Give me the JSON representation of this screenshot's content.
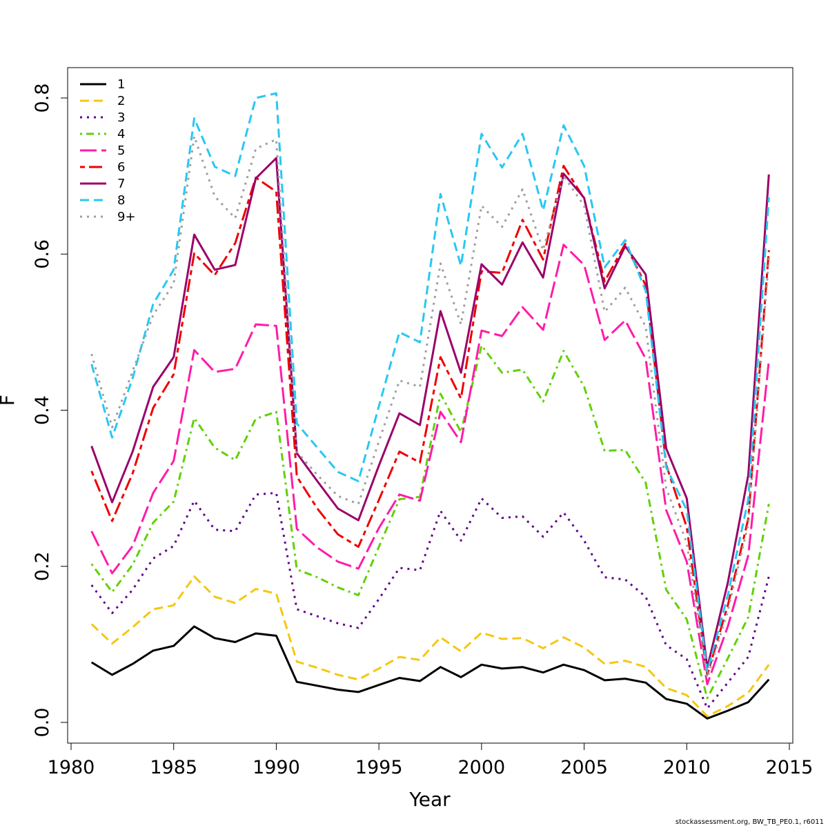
{
  "footer": {
    "source": "stockassessment.org, BW_TB_PE0.1, r6011"
  },
  "chart_data": {
    "type": "line",
    "xlabel": "Year",
    "ylabel": "F",
    "xlim": [
      1980,
      2015
    ],
    "ylim": [
      0,
      0.8
    ],
    "x_ticks": [
      1980,
      1985,
      1990,
      1995,
      2000,
      2005,
      2010,
      2015
    ],
    "y_ticks": [
      0.0,
      0.2,
      0.4,
      0.6,
      0.8
    ],
    "x_tick_labels": [
      "1980",
      "1985",
      "1990",
      "1995",
      "2000",
      "2005",
      "2010",
      "2015"
    ],
    "y_tick_labels": [
      "0.0",
      "0.2",
      "0.4",
      "0.6",
      "0.8"
    ],
    "legend_position": "top-left",
    "grid": false,
    "x": [
      1981,
      1982,
      1983,
      1984,
      1985,
      1986,
      1987,
      1988,
      1989,
      1990,
      1991,
      1992,
      1993,
      1994,
      1995,
      1996,
      1997,
      1998,
      1999,
      2000,
      2001,
      2002,
      2003,
      2004,
      2005,
      2006,
      2007,
      2008,
      2009,
      2010,
      2011,
      2012,
      2013,
      2014
    ],
    "series": [
      {
        "name": "1",
        "color": "#000000",
        "dash": "solid",
        "values": [
          0.077,
          0.061,
          0.075,
          0.092,
          0.098,
          0.123,
          0.108,
          0.103,
          0.114,
          0.111,
          0.052,
          0.047,
          0.042,
          0.039,
          0.048,
          0.057,
          0.053,
          0.071,
          0.058,
          0.074,
          0.069,
          0.071,
          0.064,
          0.074,
          0.067,
          0.054,
          0.056,
          0.051,
          0.03,
          0.024,
          0.005,
          0.015,
          0.026,
          0.055
        ]
      },
      {
        "name": "2",
        "color": "#f5c710",
        "dash": "dashed",
        "values": [
          0.126,
          0.101,
          0.122,
          0.145,
          0.15,
          0.187,
          0.161,
          0.153,
          0.171,
          0.165,
          0.078,
          0.07,
          0.061,
          0.055,
          0.069,
          0.084,
          0.08,
          0.109,
          0.091,
          0.115,
          0.107,
          0.108,
          0.095,
          0.109,
          0.096,
          0.075,
          0.079,
          0.071,
          0.044,
          0.035,
          0.008,
          0.021,
          0.038,
          0.074
        ]
      },
      {
        "name": "3",
        "color": "#61008a",
        "dash": "dotted",
        "values": [
          0.176,
          0.14,
          0.17,
          0.21,
          0.226,
          0.284,
          0.247,
          0.245,
          0.292,
          0.294,
          0.145,
          0.136,
          0.127,
          0.121,
          0.158,
          0.198,
          0.195,
          0.271,
          0.233,
          0.287,
          0.262,
          0.264,
          0.238,
          0.269,
          0.233,
          0.186,
          0.183,
          0.161,
          0.099,
          0.081,
          0.018,
          0.051,
          0.084,
          0.187
        ]
      },
      {
        "name": "4",
        "color": "#61d004",
        "dash": "dotdash",
        "values": [
          0.203,
          0.167,
          0.202,
          0.256,
          0.283,
          0.39,
          0.352,
          0.336,
          0.389,
          0.398,
          0.196,
          0.186,
          0.173,
          0.163,
          0.225,
          0.286,
          0.289,
          0.421,
          0.372,
          0.483,
          0.448,
          0.452,
          0.411,
          0.476,
          0.43,
          0.348,
          0.349,
          0.307,
          0.17,
          0.132,
          0.031,
          0.082,
          0.135,
          0.28
        ]
      },
      {
        "name": "5",
        "color": "#ff1ba8",
        "dash": "longdash",
        "values": [
          0.245,
          0.191,
          0.226,
          0.294,
          0.335,
          0.477,
          0.449,
          0.453,
          0.51,
          0.508,
          0.248,
          0.224,
          0.206,
          0.197,
          0.249,
          0.292,
          0.284,
          0.398,
          0.359,
          0.502,
          0.495,
          0.532,
          0.503,
          0.612,
          0.586,
          0.49,
          0.515,
          0.466,
          0.272,
          0.206,
          0.049,
          0.123,
          0.214,
          0.463
        ]
      },
      {
        "name": "6",
        "color": "#ee0000",
        "dash": "twodash",
        "values": [
          0.322,
          0.258,
          0.319,
          0.403,
          0.446,
          0.601,
          0.573,
          0.614,
          0.698,
          0.68,
          0.315,
          0.274,
          0.241,
          0.225,
          0.285,
          0.347,
          0.333,
          0.468,
          0.415,
          0.578,
          0.576,
          0.644,
          0.593,
          0.713,
          0.671,
          0.565,
          0.613,
          0.56,
          0.33,
          0.25,
          0.061,
          0.15,
          0.261,
          0.605
        ]
      },
      {
        "name": "7",
        "color": "#9a0069",
        "dash": "solid",
        "values": [
          0.354,
          0.282,
          0.347,
          0.43,
          0.468,
          0.625,
          0.58,
          0.586,
          0.697,
          0.723,
          0.345,
          0.309,
          0.274,
          0.259,
          0.329,
          0.396,
          0.381,
          0.527,
          0.448,
          0.587,
          0.561,
          0.615,
          0.57,
          0.703,
          0.672,
          0.556,
          0.61,
          0.574,
          0.351,
          0.287,
          0.07,
          0.179,
          0.317,
          0.702
        ]
      },
      {
        "name": "8",
        "color": "#28c7f2",
        "dash": "dashed",
        "values": [
          0.459,
          0.365,
          0.441,
          0.536,
          0.58,
          0.774,
          0.712,
          0.7,
          0.8,
          0.806,
          0.383,
          0.352,
          0.321,
          0.309,
          0.405,
          0.5,
          0.487,
          0.677,
          0.585,
          0.754,
          0.711,
          0.754,
          0.656,
          0.765,
          0.713,
          0.583,
          0.618,
          0.553,
          0.327,
          0.272,
          0.065,
          0.163,
          0.286,
          0.673
        ]
      },
      {
        "name": "9+",
        "color": "#9e9e9e",
        "dash": "dotted",
        "values": [
          0.472,
          0.378,
          0.45,
          0.522,
          0.562,
          0.751,
          0.674,
          0.646,
          0.735,
          0.747,
          0.347,
          0.317,
          0.29,
          0.28,
          0.36,
          0.438,
          0.43,
          0.588,
          0.51,
          0.662,
          0.635,
          0.683,
          0.605,
          0.7,
          0.662,
          0.526,
          0.557,
          0.507,
          0.3,
          0.23,
          0.057,
          0.143,
          0.254,
          0.595
        ]
      }
    ]
  }
}
